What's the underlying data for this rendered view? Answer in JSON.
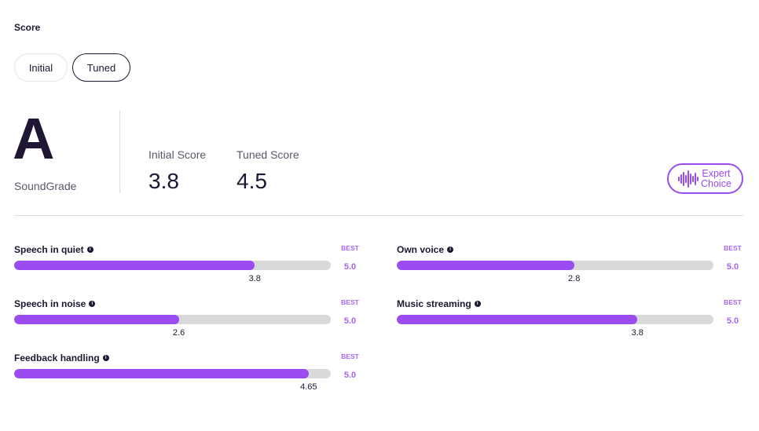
{
  "section_label": "Score",
  "toggles": {
    "initial_label": "Initial",
    "tuned_label": "Tuned",
    "selected": "Tuned"
  },
  "grade": {
    "letter": "A",
    "name": "SoundGrade"
  },
  "scores": {
    "initial_label": "Initial Score",
    "initial_value": "3.8",
    "tuned_label": "Tuned Score",
    "tuned_value": "4.5"
  },
  "badge": {
    "icon": "soundwave-icon",
    "line1": "Expert",
    "line2": "Choice"
  },
  "colors": {
    "accent": "#9a4cf0",
    "text": "#1e1633",
    "track": "#d9d9d9"
  },
  "metrics": [
    {
      "label": "Speech in quiet",
      "best_label": "BEST",
      "max": "5.0",
      "value": "3.8",
      "fraction": 0.76
    },
    {
      "label": "Own voice",
      "best_label": "BEST",
      "max": "5.0",
      "value": "2.8",
      "fraction": 0.56
    },
    {
      "label": "Speech in noise",
      "best_label": "BEST",
      "max": "5.0",
      "value": "2.6",
      "fraction": 0.52
    },
    {
      "label": "Music streaming",
      "best_label": "BEST",
      "max": "5.0",
      "value": "3.8",
      "fraction": 0.76
    },
    {
      "label": "Feedback handling",
      "best_label": "BEST",
      "max": "5.0",
      "value": "4.65",
      "fraction": 0.93
    }
  ]
}
